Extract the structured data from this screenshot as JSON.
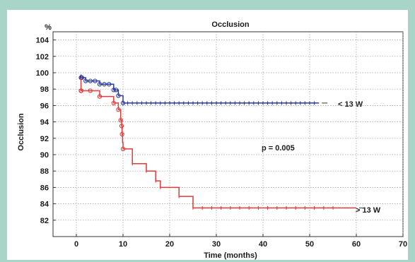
{
  "chart_data": {
    "type": "line",
    "title": "Occlusion",
    "xlabel": "Time (months)",
    "ylabel": "Occlusion",
    "y_unit": "%",
    "xlim": [
      -5,
      70
    ],
    "ylim": [
      80,
      105
    ],
    "x_ticks": [
      0,
      10,
      20,
      30,
      40,
      50,
      60,
      70
    ],
    "y_ticks": [
      82,
      84,
      86,
      88,
      90,
      92,
      94,
      96,
      98,
      100,
      102,
      104
    ],
    "grid": true,
    "annotation": "p = 0.005",
    "series": [
      {
        "name": "< 13 W",
        "color": "#2a3a9a",
        "steps": [
          [
            1,
            99.8
          ],
          [
            1,
            99.4
          ],
          [
            2,
            99.0
          ],
          [
            5,
            98.6
          ],
          [
            8,
            97.9
          ],
          [
            9,
            97.2
          ],
          [
            10,
            96.3
          ],
          [
            52,
            96.3
          ]
        ],
        "censored": [
          1,
          1,
          1.2,
          2,
          3,
          4,
          5,
          6,
          7,
          8,
          8.5,
          9,
          10,
          11,
          12,
          13,
          14,
          15,
          16,
          17,
          18,
          19,
          20,
          21,
          22,
          23,
          24,
          25,
          26,
          27,
          28,
          29,
          30,
          31,
          32,
          33,
          34,
          35,
          36,
          37,
          38,
          39,
          40,
          41,
          42,
          43,
          44,
          45,
          46,
          47,
          48,
          49,
          50,
          51
        ]
      },
      {
        "name": "> 13 W",
        "color": "#e03a3a",
        "steps": [
          [
            1,
            99.4
          ],
          [
            1,
            98.6
          ],
          [
            1,
            98.1
          ],
          [
            1,
            97.8
          ],
          [
            5,
            97.1
          ],
          [
            8,
            96.3
          ],
          [
            9,
            95.5
          ],
          [
            9.5,
            94.2
          ],
          [
            9.7,
            93.5
          ],
          [
            9.8,
            92.5
          ],
          [
            9.9,
            91.5
          ],
          [
            10,
            90.7
          ],
          [
            12,
            88.9
          ],
          [
            15,
            88.0
          ],
          [
            17,
            86.8
          ],
          [
            18,
            86.0
          ],
          [
            22,
            84.9
          ],
          [
            25,
            83.5
          ],
          [
            60,
            83.5
          ]
        ],
        "censored": [
          1,
          1,
          1,
          1,
          3,
          5,
          8,
          9,
          9.5,
          9.7,
          9.8,
          10,
          12,
          15,
          17,
          18,
          22,
          25,
          27,
          29,
          31,
          33,
          35,
          37,
          39,
          41,
          43,
          45,
          47,
          49,
          51,
          53,
          55
        ]
      }
    ]
  }
}
